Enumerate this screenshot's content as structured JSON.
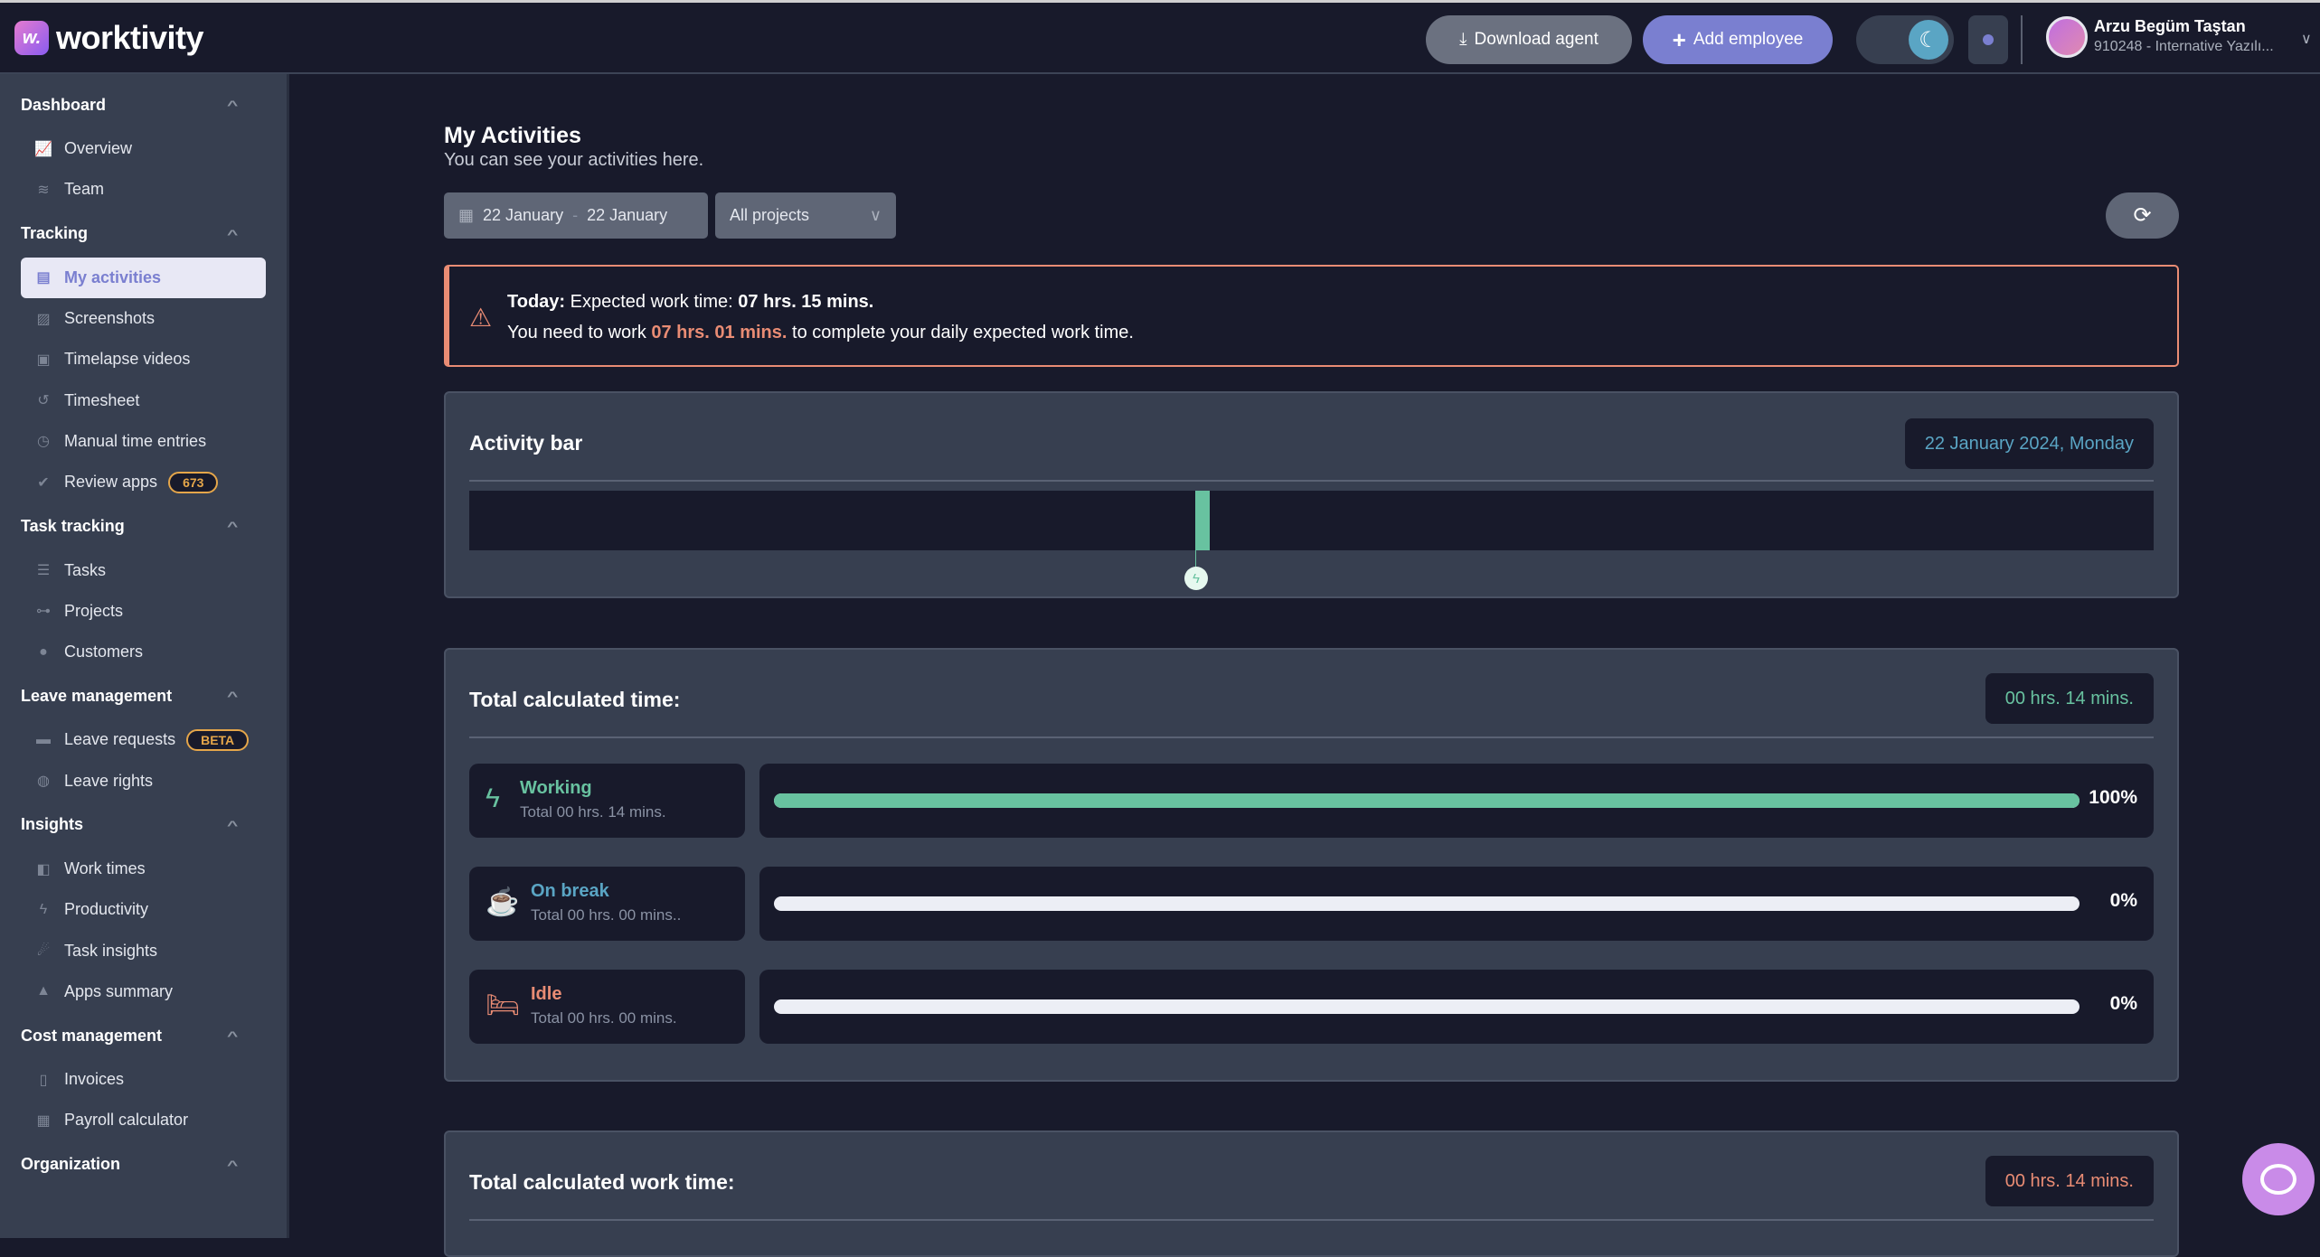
{
  "app": {
    "name": "worktivity",
    "logo_mark": "w."
  },
  "header": {
    "download_label": "Download agent",
    "add_label": "Add employee",
    "theme": "dark",
    "user_name": "Arzu Begüm Taştan",
    "user_org": "910248 - Internative Yazılı..."
  },
  "sidebar": {
    "sections": [
      {
        "title": "Dashboard",
        "items": [
          {
            "label": "Overview",
            "icon": "chart-line-icon"
          },
          {
            "label": "Team",
            "icon": "layers-icon"
          }
        ]
      },
      {
        "title": "Tracking",
        "items": [
          {
            "label": "My activities",
            "icon": "id-card-icon",
            "active": true
          },
          {
            "label": "Screenshots",
            "icon": "images-icon"
          },
          {
            "label": "Timelapse videos",
            "icon": "film-icon"
          },
          {
            "label": "Timesheet",
            "icon": "history-icon"
          },
          {
            "label": "Manual time entries",
            "icon": "stopwatch-icon"
          },
          {
            "label": "Review apps",
            "icon": "check-circle-icon",
            "badge": "673"
          }
        ]
      },
      {
        "title": "Task tracking",
        "items": [
          {
            "label": "Tasks",
            "icon": "list-check-icon"
          },
          {
            "label": "Projects",
            "icon": "sitemap-icon"
          },
          {
            "label": "Customers",
            "icon": "user-tie-icon"
          }
        ]
      },
      {
        "title": "Leave management",
        "items": [
          {
            "label": "Leave requests",
            "icon": "suitcase-icon",
            "badge": "BETA"
          },
          {
            "label": "Leave rights",
            "icon": "globe-icon"
          }
        ]
      },
      {
        "title": "Insights",
        "items": [
          {
            "label": "Work times",
            "icon": "briefcase-clock-icon"
          },
          {
            "label": "Productivity",
            "icon": "bolt-icon"
          },
          {
            "label": "Task insights",
            "icon": "comet-icon"
          },
          {
            "label": "Apps summary",
            "icon": "shapes-icon"
          }
        ]
      },
      {
        "title": "Cost management",
        "items": [
          {
            "label": "Invoices",
            "icon": "file-invoice-icon"
          },
          {
            "label": "Payroll calculator",
            "icon": "calculator-icon"
          }
        ]
      },
      {
        "title": "Organization",
        "items": []
      }
    ]
  },
  "page": {
    "title": "My Activities",
    "subtitle": "You can see your activities here.",
    "date_from": "22 January",
    "date_sep": "-",
    "date_to": "22 January",
    "project_filter": "All projects"
  },
  "alert": {
    "today_label": "Today:",
    "expected_label": " Expected work time: ",
    "expected_value": "07 hrs. 15 mins.",
    "need_prefix": "You need to work ",
    "need_value": "07 hrs. 01 mins.",
    "need_suffix": " to complete your daily expected work time."
  },
  "activity_bar": {
    "title": "Activity bar",
    "date": "22 January 2024, Monday",
    "working_position_fraction": 0.43
  },
  "total_time": {
    "title": "Total calculated time:",
    "value": "00 hrs. 14 mins.",
    "rows": [
      {
        "name": "Working",
        "total": "Total 00 hrs. 14 mins.",
        "percent": 100,
        "pct_label": "100%",
        "color": "#68c2a0",
        "icon": "bolt-icon"
      },
      {
        "name": "On break",
        "total": "Total 00 hrs. 00 mins..",
        "percent": 0,
        "pct_label": "0%",
        "color": "#5aa5c4",
        "icon": "coffee-icon"
      },
      {
        "name": "Idle",
        "total": "Total 00 hrs. 00 mins.",
        "percent": 0,
        "pct_label": "0%",
        "color": "#e98c74",
        "icon": "bed-icon"
      }
    ]
  },
  "work_time": {
    "title": "Total calculated work time:",
    "value": "00 hrs. 14 mins."
  },
  "colors": {
    "accent": "#7a7fd0",
    "working": "#68c2a0",
    "break": "#5aa5c4",
    "idle": "#e98c74",
    "badge": "#e5a64a"
  }
}
